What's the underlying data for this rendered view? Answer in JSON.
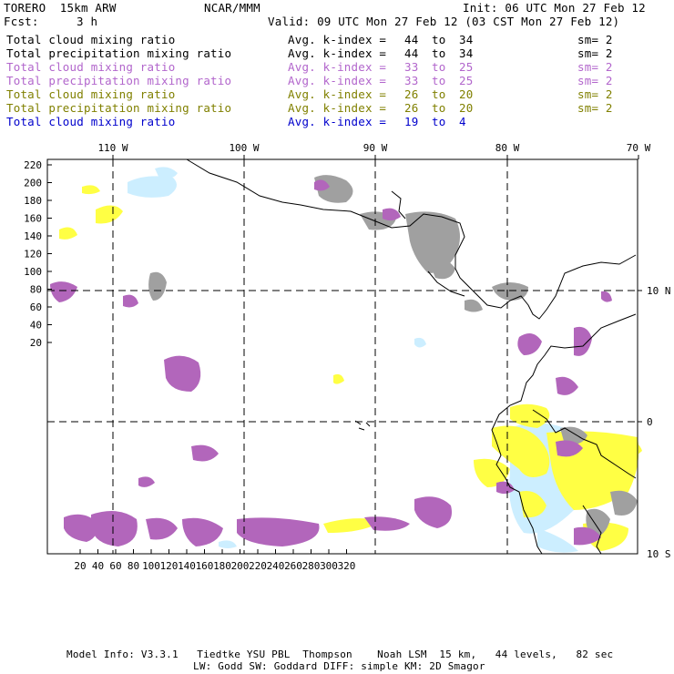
{
  "header": {
    "model": "TORERO  15km ARW",
    "org": "NCAR/MMM",
    "init": "Init: 06 UTC Mon 27 Feb 12",
    "fcst_label": "Fcst:",
    "fcst_value": "3 h",
    "valid": "Valid: 09 UTC Mon 27 Feb 12 (03 CST Mon 27 Feb 12)"
  },
  "legend": [
    {
      "field": "Total cloud mixing ratio",
      "stat": "Avg. k-index =",
      "from": "44",
      "to_word": "to",
      "to": "34",
      "sm": "sm= 2",
      "color": "#000000"
    },
    {
      "field": "Total precipitation mixing ratio",
      "stat": "Avg. k-index =",
      "from": "44",
      "to_word": "to",
      "to": "34",
      "sm": "sm= 2",
      "color": "#000000"
    },
    {
      "field": "Total cloud mixing ratio",
      "stat": "Avg. k-index =",
      "from": "33",
      "to_word": "to",
      "to": "25",
      "sm": "sm= 2",
      "color": "#b266cc"
    },
    {
      "field": "Total precipitation mixing ratio",
      "stat": "Avg. k-index =",
      "from": "33",
      "to_word": "to",
      "to": "25",
      "sm": "sm= 2",
      "color": "#b266cc"
    },
    {
      "field": "Total cloud mixing ratio",
      "stat": "Avg. k-index =",
      "from": "26",
      "to_word": "to",
      "to": "20",
      "sm": "sm= 2",
      "color": "#808000"
    },
    {
      "field": "Total precipitation mixing ratio",
      "stat": "Avg. k-index =",
      "from": "26",
      "to_word": "to",
      "to": "20",
      "sm": "sm= 2",
      "color": "#808000"
    },
    {
      "field": "Total cloud mixing ratio",
      "stat": "Avg. k-index =",
      "from": "19",
      "to_word": "to",
      "to": "4",
      "sm": "",
      "color": "#0000cc"
    }
  ],
  "map": {
    "lon_labels": [
      "110 W",
      "100 W",
      "90 W",
      "80 W",
      "70 W"
    ],
    "lat_labels": [
      "10 N",
      "0",
      "10 S"
    ],
    "y_ticks": [
      "220",
      "200",
      "180",
      "160",
      "140",
      "120",
      "100",
      "80",
      "60",
      "40",
      "20"
    ],
    "x_ticks": [
      "20",
      "40",
      "60",
      "80",
      "100",
      "120",
      "140",
      "160",
      "180",
      "200",
      "220",
      "240",
      "260",
      "280",
      "300",
      "320"
    ],
    "colors": {
      "gray": "#a0a0a0",
      "purple": "#b266bb",
      "yellow": "#ffff44",
      "lightblue": "#cceeff",
      "coast": "#000000",
      "grid": "#000000"
    }
  },
  "footer": {
    "line1": "Model Info: V3.3.1   Tiedtke YSU PBL  Thompson    Noah LSM  15 km,   44 levels,   82 sec",
    "line2": "LW: Godd SW: Goddard DIFF: simple KM: 2D Smagor"
  }
}
